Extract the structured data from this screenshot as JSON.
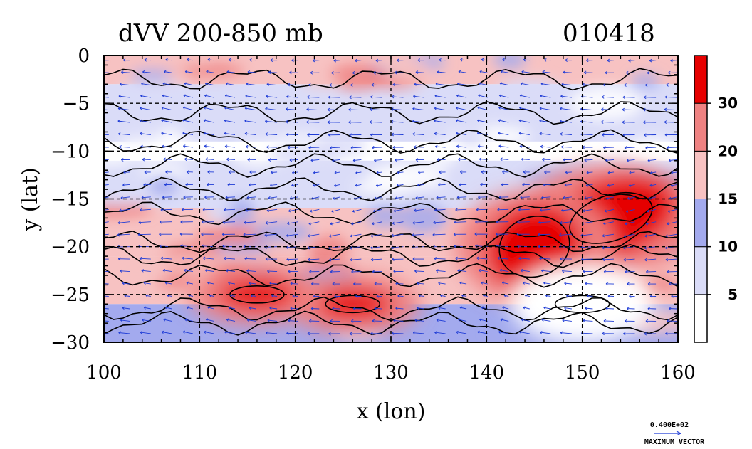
{
  "chart_data": {
    "type": "heatmap",
    "title": "dVV 200-850 mb",
    "date_label": "010418",
    "xlabel": "x (lon)",
    "ylabel": "y (lat)",
    "xlim": [
      100,
      160
    ],
    "ylim": [
      -30,
      0
    ],
    "x_ticks": [
      100,
      110,
      120,
      130,
      140,
      150,
      160
    ],
    "y_ticks": [
      0,
      -5,
      -10,
      -15,
      -20,
      -25,
      -30
    ],
    "x_tick_labels": [
      "100",
      "110",
      "120",
      "130",
      "140",
      "150",
      "160"
    ],
    "y_tick_labels": [
      "0",
      "−5",
      "−10",
      "−15",
      "−20",
      "−25",
      "−30"
    ],
    "grid": true,
    "colorbar": {
      "levels": [
        0,
        5,
        10,
        15,
        20,
        30,
        35
      ],
      "labels": [
        "5",
        "10",
        "15",
        "20",
        "30"
      ],
      "label_values": [
        5,
        10,
        15,
        20,
        30
      ],
      "colors": [
        "#ffffff",
        "#dadcf8",
        "#a3aaee",
        "#f7c2c2",
        "#ef8282",
        "#e60000"
      ]
    },
    "field_zones": [
      {
        "lat": [
          0,
          -3
        ],
        "value": 17
      },
      {
        "lat": [
          -3,
          -9
        ],
        "value": 9
      },
      {
        "lat": [
          -9,
          -11
        ],
        "value": 3
      },
      {
        "lat": [
          -11,
          -16
        ],
        "value": 8
      },
      {
        "lat": [
          -16,
          -21
        ],
        "value": 17
      },
      {
        "lat": [
          -21,
          -26
        ],
        "value": 18
      },
      {
        "lat": [
          -26,
          -30
        ],
        "value": 12
      }
    ],
    "maxima": [
      {
        "lon": 153,
        "lat": -17,
        "value": 33
      },
      {
        "lon": 145,
        "lat": -20,
        "value": 31
      },
      {
        "lon": 126,
        "lat": -26,
        "value": 32
      },
      {
        "lon": 116,
        "lat": -25,
        "value": 31
      },
      {
        "lon": 150,
        "lat": -26,
        "value": 4
      }
    ],
    "vector_reference": {
      "magnitude_label": "0.400E+02",
      "caption": "MAXIMUM VECTOR"
    }
  }
}
